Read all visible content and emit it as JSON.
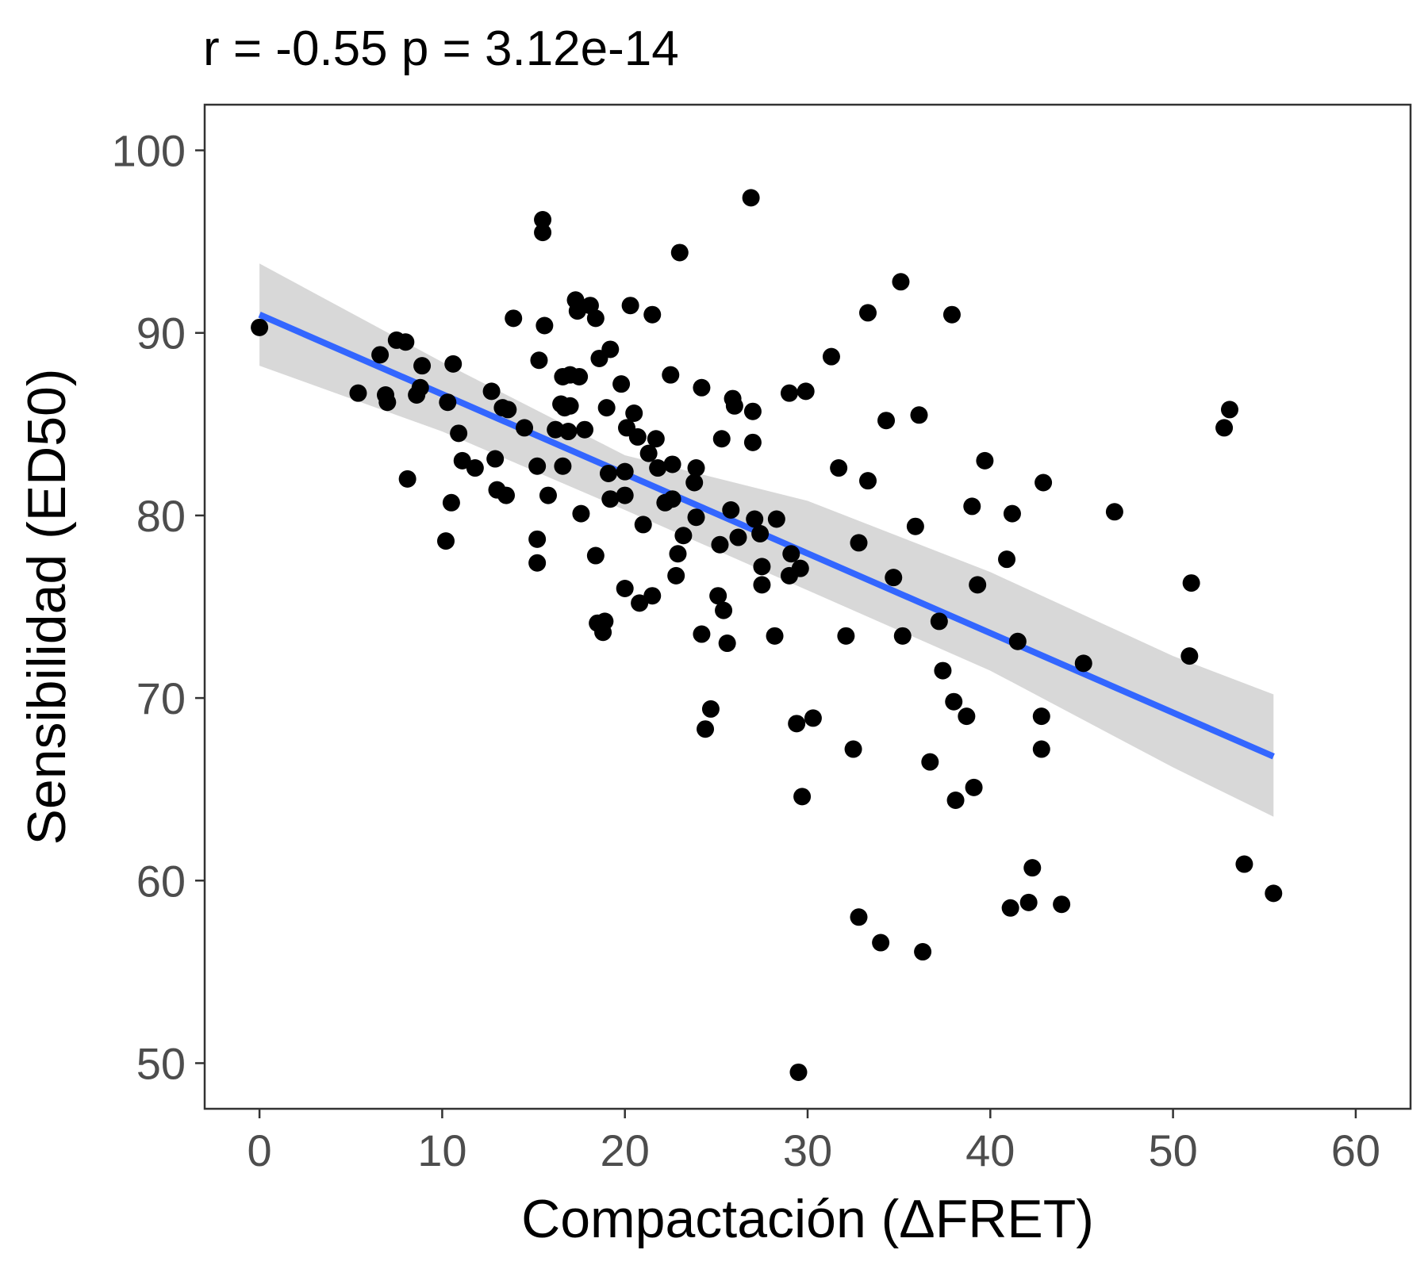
{
  "chart_data": {
    "type": "scatter",
    "title": "r =  -0.55 p =  3.12e-14",
    "xlabel": "Compactación (ΔFRET)",
    "ylabel": "Sensibilidad (ED50)",
    "xlim": [
      -3,
      63
    ],
    "ylim": [
      47.5,
      102.5
    ],
    "x_ticks": [
      0,
      10,
      20,
      30,
      40,
      50,
      60
    ],
    "x_tick_labels": [
      "0",
      "10",
      "20",
      "30",
      "40",
      "50",
      "60"
    ],
    "y_ticks": [
      50,
      60,
      70,
      80,
      90,
      100
    ],
    "y_tick_labels": [
      "50",
      "60",
      "70",
      "80",
      "90",
      "100"
    ],
    "grid": false,
    "colors": {
      "points": "#000000",
      "fit_line": "#3366FF",
      "confidence_band": "#BEBEBE",
      "border": "#333333",
      "tick_text": "#4D4D4D"
    },
    "fit": {
      "x": [
        0,
        55.5
      ],
      "y": [
        91.0,
        66.8
      ]
    },
    "confidence_band": {
      "x": [
        0,
        10,
        20,
        30,
        40,
        50,
        55.5
      ],
      "lower": [
        88.2,
        84.6,
        80.3,
        75.9,
        71.5,
        66.2,
        63.5
      ],
      "upper": [
        93.8,
        88.4,
        83.3,
        80.8,
        76.9,
        72.3,
        70.2
      ]
    },
    "points": [
      {
        "x": 0,
        "y": 90.3
      },
      {
        "x": 5.4,
        "y": 86.7
      },
      {
        "x": 6.6,
        "y": 88.8
      },
      {
        "x": 6.9,
        "y": 86.6
      },
      {
        "x": 7.0,
        "y": 86.2
      },
      {
        "x": 7.5,
        "y": 89.6
      },
      {
        "x": 8.0,
        "y": 89.5
      },
      {
        "x": 8.1,
        "y": 82.0
      },
      {
        "x": 8.6,
        "y": 86.6
      },
      {
        "x": 8.9,
        "y": 88.2
      },
      {
        "x": 8.8,
        "y": 87.0
      },
      {
        "x": 10.2,
        "y": 78.6
      },
      {
        "x": 10.3,
        "y": 86.2
      },
      {
        "x": 10.5,
        "y": 80.7
      },
      {
        "x": 10.6,
        "y": 88.3
      },
      {
        "x": 10.9,
        "y": 84.5
      },
      {
        "x": 11.1,
        "y": 83.0
      },
      {
        "x": 11.8,
        "y": 82.6
      },
      {
        "x": 12.7,
        "y": 86.8
      },
      {
        "x": 12.9,
        "y": 83.1
      },
      {
        "x": 13.0,
        "y": 81.4
      },
      {
        "x": 13.3,
        "y": 85.9
      },
      {
        "x": 13.5,
        "y": 81.1
      },
      {
        "x": 13.6,
        "y": 85.8
      },
      {
        "x": 13.9,
        "y": 90.8
      },
      {
        "x": 14.5,
        "y": 84.8
      },
      {
        "x": 15.2,
        "y": 82.7
      },
      {
        "x": 15.2,
        "y": 78.7
      },
      {
        "x": 15.2,
        "y": 77.4
      },
      {
        "x": 15.3,
        "y": 88.5
      },
      {
        "x": 15.5,
        "y": 96.2
      },
      {
        "x": 15.5,
        "y": 95.5
      },
      {
        "x": 15.6,
        "y": 90.4
      },
      {
        "x": 15.8,
        "y": 81.1
      },
      {
        "x": 16.2,
        "y": 84.7
      },
      {
        "x": 16.5,
        "y": 86.1
      },
      {
        "x": 16.6,
        "y": 82.7
      },
      {
        "x": 16.6,
        "y": 87.6
      },
      {
        "x": 16.7,
        "y": 85.9
      },
      {
        "x": 16.9,
        "y": 84.6
      },
      {
        "x": 17.0,
        "y": 86.0
      },
      {
        "x": 17.0,
        "y": 87.7
      },
      {
        "x": 17.3,
        "y": 91.8
      },
      {
        "x": 17.4,
        "y": 91.2
      },
      {
        "x": 17.5,
        "y": 87.6
      },
      {
        "x": 17.6,
        "y": 80.1
      },
      {
        "x": 17.8,
        "y": 84.7
      },
      {
        "x": 18.1,
        "y": 91.5
      },
      {
        "x": 18.4,
        "y": 90.8
      },
      {
        "x": 18.4,
        "y": 77.8
      },
      {
        "x": 18.5,
        "y": 74.1
      },
      {
        "x": 18.6,
        "y": 88.6
      },
      {
        "x": 18.8,
        "y": 73.6
      },
      {
        "x": 18.9,
        "y": 74.2
      },
      {
        "x": 19.0,
        "y": 85.9
      },
      {
        "x": 19.1,
        "y": 82.3
      },
      {
        "x": 19.2,
        "y": 89.1
      },
      {
        "x": 19.2,
        "y": 80.9
      },
      {
        "x": 19.8,
        "y": 87.2
      },
      {
        "x": 20.0,
        "y": 82.4
      },
      {
        "x": 20.0,
        "y": 81.1
      },
      {
        "x": 20.0,
        "y": 76.0
      },
      {
        "x": 20.1,
        "y": 84.8
      },
      {
        "x": 20.3,
        "y": 91.5
      },
      {
        "x": 20.5,
        "y": 85.6
      },
      {
        "x": 20.7,
        "y": 84.3
      },
      {
        "x": 20.8,
        "y": 75.2
      },
      {
        "x": 21.0,
        "y": 79.5
      },
      {
        "x": 21.3,
        "y": 83.4
      },
      {
        "x": 21.5,
        "y": 91.0
      },
      {
        "x": 21.5,
        "y": 75.6
      },
      {
        "x": 21.7,
        "y": 84.2
      },
      {
        "x": 21.8,
        "y": 82.6
      },
      {
        "x": 22.2,
        "y": 80.7
      },
      {
        "x": 22.5,
        "y": 87.7
      },
      {
        "x": 22.6,
        "y": 82.8
      },
      {
        "x": 22.6,
        "y": 80.9
      },
      {
        "x": 22.8,
        "y": 76.7
      },
      {
        "x": 22.9,
        "y": 77.9
      },
      {
        "x": 23.0,
        "y": 94.4
      },
      {
        "x": 23.2,
        "y": 78.9
      },
      {
        "x": 23.8,
        "y": 81.8
      },
      {
        "x": 23.9,
        "y": 79.9
      },
      {
        "x": 23.9,
        "y": 82.6
      },
      {
        "x": 24.2,
        "y": 87.0
      },
      {
        "x": 24.2,
        "y": 73.5
      },
      {
        "x": 24.4,
        "y": 68.3
      },
      {
        "x": 24.7,
        "y": 69.4
      },
      {
        "x": 25.1,
        "y": 75.6
      },
      {
        "x": 25.2,
        "y": 78.4
      },
      {
        "x": 25.3,
        "y": 84.2
      },
      {
        "x": 25.4,
        "y": 74.8
      },
      {
        "x": 25.6,
        "y": 73.0
      },
      {
        "x": 25.8,
        "y": 80.3
      },
      {
        "x": 25.9,
        "y": 86.4
      },
      {
        "x": 26.0,
        "y": 86.0
      },
      {
        "x": 26.2,
        "y": 78.8
      },
      {
        "x": 26.9,
        "y": 97.4
      },
      {
        "x": 27.0,
        "y": 85.7
      },
      {
        "x": 27.0,
        "y": 84.0
      },
      {
        "x": 27.1,
        "y": 79.8
      },
      {
        "x": 27.4,
        "y": 79.0
      },
      {
        "x": 27.5,
        "y": 77.2
      },
      {
        "x": 27.5,
        "y": 76.2
      },
      {
        "x": 28.2,
        "y": 73.4
      },
      {
        "x": 28.3,
        "y": 79.8
      },
      {
        "x": 29.0,
        "y": 86.7
      },
      {
        "x": 29.0,
        "y": 76.7
      },
      {
        "x": 29.1,
        "y": 77.9
      },
      {
        "x": 29.4,
        "y": 68.6
      },
      {
        "x": 29.5,
        "y": 49.5
      },
      {
        "x": 29.6,
        "y": 77.1
      },
      {
        "x": 29.7,
        "y": 64.6
      },
      {
        "x": 29.9,
        "y": 86.8
      },
      {
        "x": 30.3,
        "y": 68.9
      },
      {
        "x": 31.3,
        "y": 88.7
      },
      {
        "x": 31.7,
        "y": 82.6
      },
      {
        "x": 32.1,
        "y": 73.4
      },
      {
        "x": 32.5,
        "y": 67.2
      },
      {
        "x": 32.8,
        "y": 58.0
      },
      {
        "x": 32.8,
        "y": 78.5
      },
      {
        "x": 33.3,
        "y": 91.1
      },
      {
        "x": 33.3,
        "y": 81.9
      },
      {
        "x": 34.0,
        "y": 56.6
      },
      {
        "x": 34.3,
        "y": 85.2
      },
      {
        "x": 34.7,
        "y": 76.6
      },
      {
        "x": 35.1,
        "y": 92.8
      },
      {
        "x": 35.2,
        "y": 73.4
      },
      {
        "x": 35.9,
        "y": 79.4
      },
      {
        "x": 36.1,
        "y": 85.5
      },
      {
        "x": 36.3,
        "y": 56.1
      },
      {
        "x": 36.7,
        "y": 66.5
      },
      {
        "x": 37.2,
        "y": 74.2
      },
      {
        "x": 37.4,
        "y": 71.5
      },
      {
        "x": 37.9,
        "y": 91.0
      },
      {
        "x": 38.0,
        "y": 69.8
      },
      {
        "x": 38.1,
        "y": 64.4
      },
      {
        "x": 38.7,
        "y": 69.0
      },
      {
        "x": 39.0,
        "y": 80.5
      },
      {
        "x": 39.1,
        "y": 65.1
      },
      {
        "x": 39.3,
        "y": 76.2
      },
      {
        "x": 39.7,
        "y": 83.0
      },
      {
        "x": 40.9,
        "y": 77.6
      },
      {
        "x": 41.1,
        "y": 58.5
      },
      {
        "x": 41.2,
        "y": 80.1
      },
      {
        "x": 41.5,
        "y": 73.1
      },
      {
        "x": 42.1,
        "y": 58.8
      },
      {
        "x": 42.3,
        "y": 60.7
      },
      {
        "x": 42.8,
        "y": 69.0
      },
      {
        "x": 42.8,
        "y": 67.2
      },
      {
        "x": 42.9,
        "y": 81.8
      },
      {
        "x": 43.9,
        "y": 58.7
      },
      {
        "x": 45.1,
        "y": 71.9
      },
      {
        "x": 46.8,
        "y": 80.2
      },
      {
        "x": 50.9,
        "y": 72.3
      },
      {
        "x": 51.0,
        "y": 76.3
      },
      {
        "x": 52.8,
        "y": 84.8
      },
      {
        "x": 53.1,
        "y": 85.8
      },
      {
        "x": 53.9,
        "y": 60.9
      },
      {
        "x": 55.5,
        "y": 59.3
      }
    ]
  }
}
